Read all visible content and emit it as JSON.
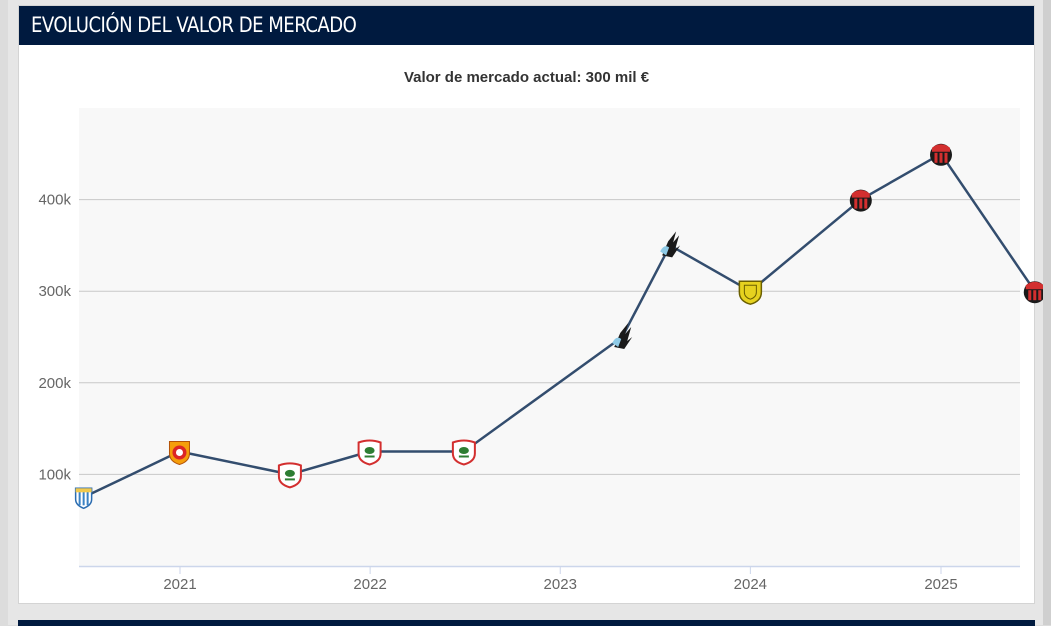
{
  "header": {
    "title": "EVOLUCIÓN DEL VALOR DE MERCADO"
  },
  "subtitle": "Valor de mercado actual: 300 mil €",
  "colors": {
    "header_bg": "#001a3f",
    "line": "#334d6e",
    "plot_bg": "#f8f8f8",
    "grid": "#c8c8c8",
    "axis": "#ccd6eb",
    "tick_text": "#666666"
  },
  "chart_data": {
    "type": "line",
    "title": "Valor de mercado actual: 300 mil €",
    "xlabel": "",
    "ylabel": "",
    "x_ticks": [
      "2021",
      "2022",
      "2023",
      "2024",
      "2025"
    ],
    "y_ticks": [
      "100k",
      "200k",
      "300k",
      "400k"
    ],
    "ylim": [
      0,
      500000
    ],
    "grid": true,
    "legend": "none",
    "series": [
      {
        "points": [
          {
            "x": "2020-06-30",
            "y": 75000,
            "club_icon": "blue-white-striped-crest"
          },
          {
            "x": "2020-12-31",
            "y": 125000,
            "club_icon": "orange-red-shield-crest"
          },
          {
            "x": "2021-07-31",
            "y": 100000,
            "club_icon": "red-white-tree-crest"
          },
          {
            "x": "2021-12-31",
            "y": 125000,
            "club_icon": "red-white-tree-crest"
          },
          {
            "x": "2022-06-30",
            "y": 125000,
            "club_icon": "red-white-tree-crest"
          },
          {
            "x": "2023-04-30",
            "y": 250000,
            "club_icon": "black-blue-loon-crest"
          },
          {
            "x": "2023-07-31",
            "y": 350000,
            "club_icon": "black-blue-loon-crest"
          },
          {
            "x": "2024-01-01",
            "y": 300000,
            "club_icon": "yellow-shield-crest"
          },
          {
            "x": "2024-07-31",
            "y": 400000,
            "club_icon": "red-black-striped-crest"
          },
          {
            "x": "2025-01-01",
            "y": 450000,
            "club_icon": "red-black-striped-crest"
          },
          {
            "x": "2025-06-30",
            "y": 300000,
            "club_icon": "red-black-striped-crest"
          }
        ]
      }
    ]
  }
}
